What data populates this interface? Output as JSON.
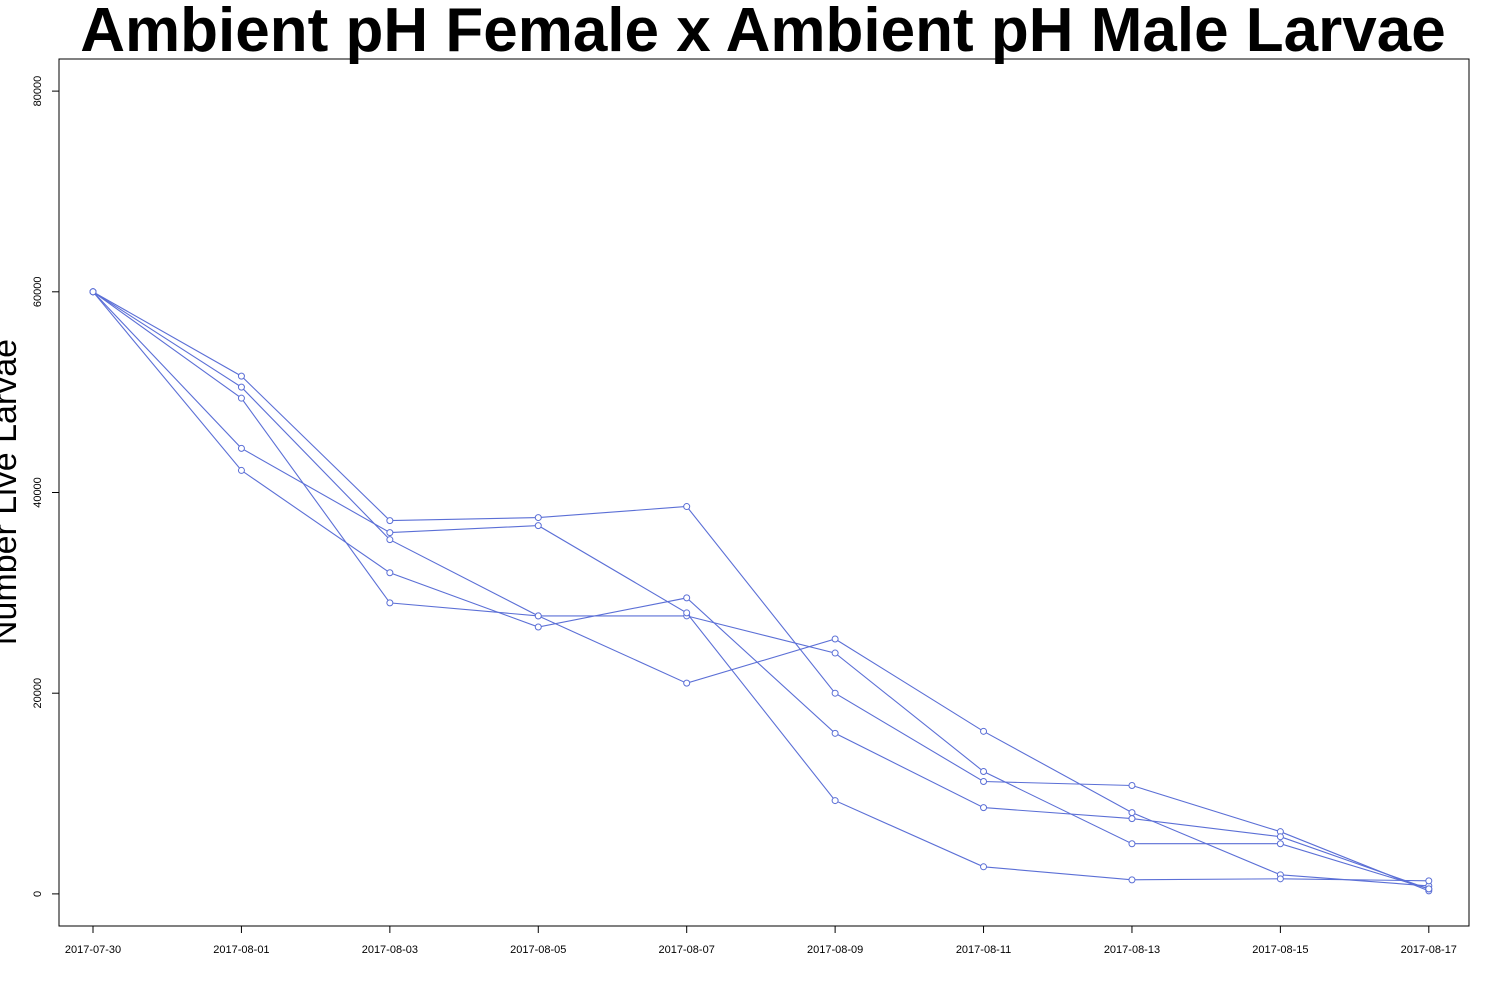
{
  "chart_data": {
    "type": "line",
    "title": "Ambient pH Female x Ambient pH Male Larvae",
    "xlabel": "",
    "ylabel": "Number Live Larvae",
    "x": [
      "2017-07-30",
      "2017-08-01",
      "2017-08-03",
      "2017-08-05",
      "2017-08-07",
      "2017-08-09",
      "2017-08-11",
      "2017-08-13",
      "2017-08-15",
      "2017-08-17"
    ],
    "x_tick_labels": [
      "2017-07-30",
      "2017-08-01",
      "2017-08-03",
      "2017-08-05",
      "2017-08-07",
      "2017-08-09",
      "2017-08-11",
      "2017-08-13",
      "2017-08-15",
      "2017-08-17"
    ],
    "y_ticks": [
      0,
      20000,
      40000,
      60000,
      80000
    ],
    "ylim": [
      -3200,
      83200
    ],
    "xlim": [
      "2017-07-29T13:00",
      "2017-08-17T13:00"
    ],
    "grid": false,
    "legend": "none",
    "line_color": "#5b6fd6",
    "series": [
      {
        "values": [
          60000,
          51600,
          37200,
          37500,
          38600,
          20000,
          11200,
          10800,
          6200,
          300
        ]
      },
      {
        "values": [
          60000,
          50500,
          35300,
          27700,
          27700,
          24000,
          12200,
          5000,
          5000,
          500
        ]
      },
      {
        "values": [
          60000,
          49400,
          29000,
          27700,
          21000,
          25400,
          16200,
          8100,
          1900,
          800
        ]
      },
      {
        "values": [
          60000,
          44400,
          36000,
          36700,
          28000,
          9300,
          2700,
          1400,
          1500,
          1300
        ]
      },
      {
        "values": [
          60000,
          42200,
          32000,
          26600,
          29500,
          16000,
          8600,
          7500,
          5700,
          500
        ]
      }
    ]
  }
}
